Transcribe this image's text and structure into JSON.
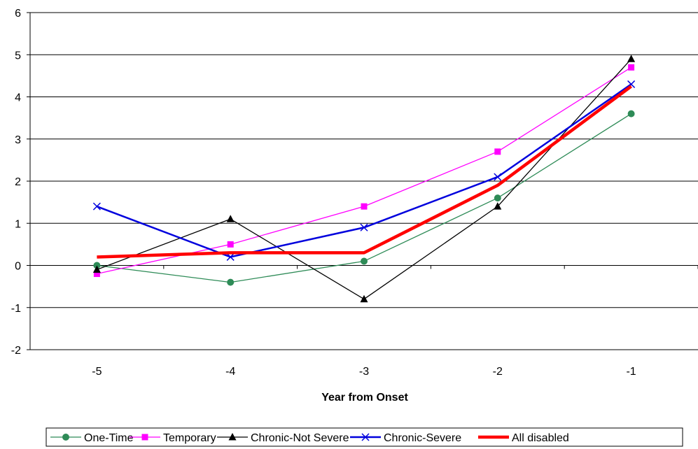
{
  "chart_data": {
    "type": "line",
    "title": "",
    "xlabel": "Year from Onset",
    "ylabel": "",
    "categories": [
      "-5",
      "-4",
      "-3",
      "-2",
      "-1"
    ],
    "yticks": [
      "-2",
      "-1",
      "0",
      "1",
      "2",
      "3",
      "4",
      "5",
      "6"
    ],
    "ylim": [
      -2,
      6
    ],
    "grid": true,
    "legend_position": "bottom",
    "series": [
      {
        "name": "One-Time",
        "values": [
          0.0,
          -0.4,
          0.1,
          1.6,
          3.6
        ],
        "color": "#2e8b57",
        "marker": "circle"
      },
      {
        "name": "Temporary",
        "values": [
          -0.2,
          0.5,
          1.4,
          2.7,
          4.7
        ],
        "color": "#ff00ff",
        "marker": "square"
      },
      {
        "name": "Chronic-Not Severe",
        "values": [
          -0.1,
          1.1,
          -0.8,
          1.4,
          4.9
        ],
        "color": "#000000",
        "marker": "triangle"
      },
      {
        "name": "Chronic-Severe",
        "values": [
          1.4,
          0.2,
          0.9,
          2.1,
          4.3
        ],
        "color": "#0000dd",
        "marker": "x"
      },
      {
        "name": "All disabled",
        "values": [
          0.2,
          0.3,
          0.3,
          1.9,
          4.25
        ],
        "color": "#ff0000",
        "marker": "none"
      }
    ]
  }
}
